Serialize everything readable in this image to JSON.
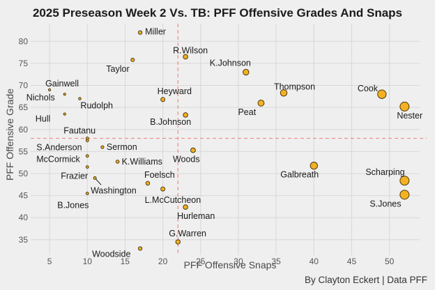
{
  "chart_data": {
    "type": "scatter",
    "title": "2025 Preseason Week 2 Vs. TB: PFF Offensive Grades And Snaps",
    "xlabel": "PFF Offensive Snaps",
    "ylabel": "PFF Offensive Grade",
    "caption": "By Clayton Eckert | Data PFF",
    "xlim": [
      2.5,
      54
    ],
    "ylim": [
      31.5,
      84
    ],
    "xticks": [
      5,
      10,
      15,
      20,
      25,
      30,
      35,
      40,
      45,
      50
    ],
    "yticks": [
      35,
      40,
      45,
      50,
      55,
      60,
      65,
      70,
      75,
      80
    ],
    "grid": true,
    "ref_lines": {
      "x_mean": 22,
      "y_mean": 58
    },
    "points": [
      {
        "name": "Miller",
        "x": 17,
        "y": 82
      },
      {
        "name": "R.Wilson",
        "x": 23,
        "y": 76.5
      },
      {
        "name": "Taylor",
        "x": 16,
        "y": 75.8
      },
      {
        "name": "K.Johnson",
        "x": 31,
        "y": 73
      },
      {
        "name": "Gainwell",
        "x": 5,
        "y": 69
      },
      {
        "name": "Thompson",
        "x": 36,
        "y": 68.3
      },
      {
        "name": "Cook",
        "x": 49,
        "y": 68
      },
      {
        "name": "Nichols",
        "x": 7,
        "y": 68
      },
      {
        "name": "Rudolph",
        "x": 9,
        "y": 67
      },
      {
        "name": "Heyward",
        "x": 20,
        "y": 66.8
      },
      {
        "name": "Peat",
        "x": 33,
        "y": 66
      },
      {
        "name": "Nester",
        "x": 52,
        "y": 65.2
      },
      {
        "name": "Hull",
        "x": 7,
        "y": 63.5
      },
      {
        "name": "B.Johnson",
        "x": 23,
        "y": 63.3
      },
      {
        "name": "Fautanu",
        "x": 10,
        "y": 58
      },
      {
        "name": "S.Anderson",
        "x": 10,
        "y": 57.5
      },
      {
        "name": "Sermon",
        "x": 12,
        "y": 56
      },
      {
        "name": "Woods",
        "x": 24,
        "y": 55.3
      },
      {
        "name": "McCormick",
        "x": 10,
        "y": 54
      },
      {
        "name": "K.Williams",
        "x": 14,
        "y": 52.7
      },
      {
        "name": "Galbreath",
        "x": 40,
        "y": 51.8
      },
      {
        "name": "Frazier",
        "x": 10,
        "y": 51.5
      },
      {
        "name": "Scharping",
        "x": 52,
        "y": 48.4
      },
      {
        "name": "Washington",
        "x": 11,
        "y": 49
      },
      {
        "name": "Foelsch",
        "x": 18,
        "y": 47.8
      },
      {
        "name": "L.McCutcheon",
        "x": 20,
        "y": 46.5
      },
      {
        "name": "B.Jones",
        "x": 10,
        "y": 45.5
      },
      {
        "name": "S.Jones",
        "x": 52,
        "y": 45.2
      },
      {
        "name": "Hurleman",
        "x": 23,
        "y": 42.4
      },
      {
        "name": "G.Warren",
        "x": 22,
        "y": 34.5
      },
      {
        "name": "Woodside",
        "x": 17,
        "y": 33
      }
    ]
  }
}
